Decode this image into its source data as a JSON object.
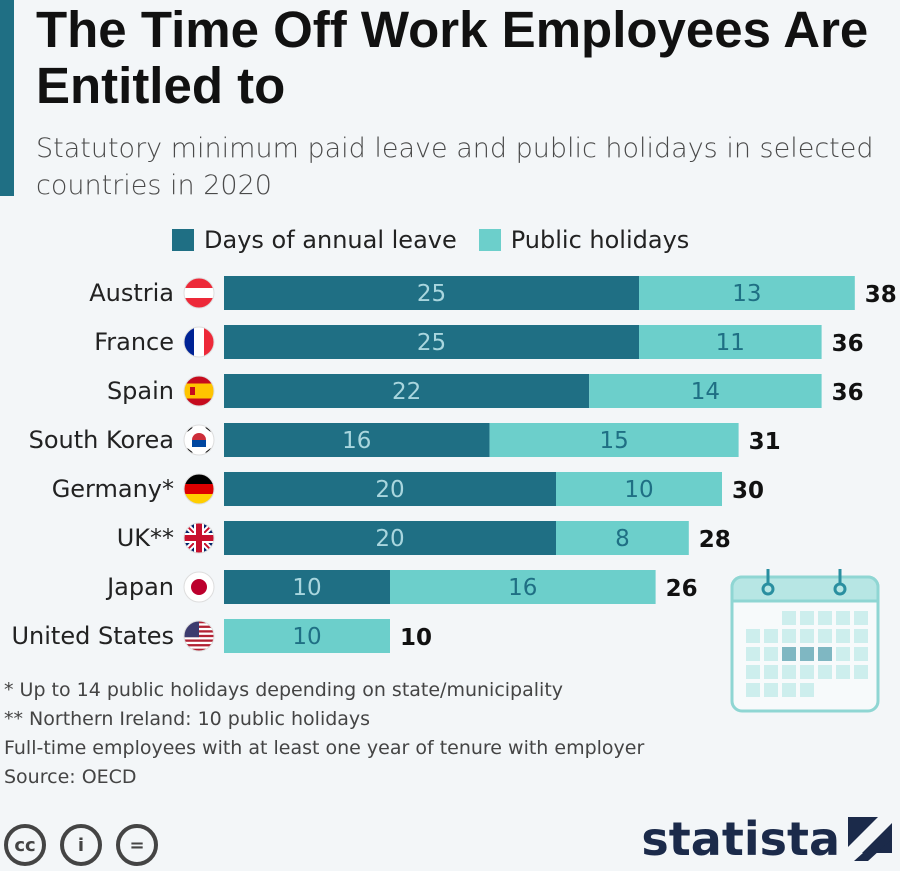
{
  "header": {
    "title": "The Time Off Work Employees Are Entitled to",
    "subtitle": "Statutory minimum paid leave and public holidays in selected countries in 2020"
  },
  "chart_data": {
    "type": "bar",
    "orientation": "horizontal",
    "stacked": true,
    "categories": [
      "Austria",
      "France",
      "Spain",
      "South Korea",
      "Germany*",
      "UK**",
      "Japan",
      "United States"
    ],
    "series": [
      {
        "name": "Days of annual leave",
        "color": "#1f6f84",
        "values": [
          25,
          25,
          22,
          16,
          20,
          20,
          10,
          0
        ]
      },
      {
        "name": "Public holidays",
        "color": "#6ccfcb",
        "values": [
          13,
          11,
          14,
          15,
          10,
          8,
          16,
          10
        ]
      }
    ],
    "totals": [
      38,
      36,
      36,
      31,
      30,
      28,
      26,
      10
    ],
    "legend_position": "top",
    "grid": false
  },
  "footnotes": [
    "*   Up to 14 public holidays depending on state/municipality",
    "** Northern Ireland: 10 public holidays",
    "Full-time employees with at least one year of tenure with employer",
    "Source: OECD"
  ],
  "license_icons": [
    "cc",
    "i",
    "="
  ],
  "brand": {
    "name": "statista",
    "color": "#1b2a4a"
  },
  "icons": {
    "flags": [
      "austria-flag-icon",
      "france-flag-icon",
      "spain-flag-icon",
      "south-korea-flag-icon",
      "germany-flag-icon",
      "uk-flag-icon",
      "japan-flag-icon",
      "usa-flag-icon"
    ],
    "decoration": "calendar-icon"
  }
}
